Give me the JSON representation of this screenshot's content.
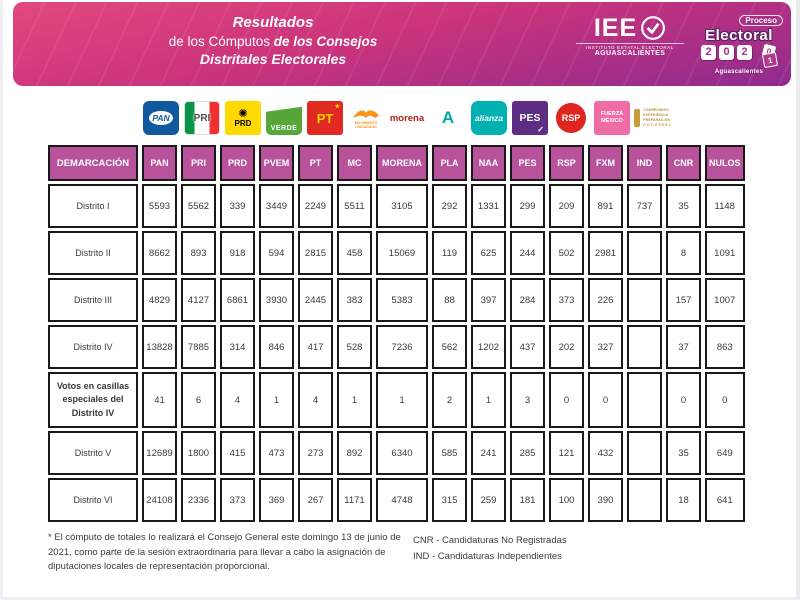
{
  "banner": {
    "title": {
      "line1": "Resultados",
      "line2a": "de los Cómputos ",
      "line2b": "de los Consejos",
      "line3": "Distritales Electorales"
    },
    "iee": {
      "acronym": "IEE",
      "subtitle": "INSTITUTO ESTATAL ELECTORAL",
      "state": "AGUASCALIENTES"
    },
    "proceso": {
      "word1": "Proceso",
      "word2": "Electoral",
      "digits": [
        "2",
        "0",
        "2"
      ],
      "cube_top": "0",
      "cube_front": "1",
      "state": "Aguascalientes"
    }
  },
  "parties": {
    "pan": {
      "label": "PAN",
      "color": "#10599e"
    },
    "pri": {
      "label": "PRI",
      "colors": [
        "#0a9447",
        "#ffffff",
        "#ee312e"
      ]
    },
    "prd": {
      "label": "PRD",
      "sun_icon": "✺",
      "color": "#ffd900"
    },
    "pvem": {
      "label": "VERDE",
      "color": "#57a639"
    },
    "pt": {
      "label": "PT",
      "star_icon": "★",
      "color": "#e02a22"
    },
    "mc": {
      "label": "MOVIMIENTO CIUDADANO",
      "color": "#f7941d"
    },
    "morena": {
      "label": "morena",
      "color": "#a6231c"
    },
    "pla": {
      "label": "A",
      "color": "#00a5a8"
    },
    "naa": {
      "label": "alianza",
      "color": "#00b1b4"
    },
    "pes": {
      "label": "PES",
      "check_icon": "✓",
      "color": "#5c2d83"
    },
    "rsp": {
      "label": "RSP",
      "color": "#e0251f"
    },
    "fxm": {
      "label": "FUERZA MÉXICO",
      "color": "#f06ca5"
    },
    "ind_candidate": {
      "lines": [
        "COMPROMISO",
        "EXPERIENCIA",
        "PREPARACIÓN"
      ],
      "name": "GUTIÉRREZ",
      "color": "#c79a3b"
    }
  },
  "chart_data": {
    "type": "table",
    "title": "Resultados de los Cómputos de los Consejos Distritales Electorales",
    "columns": [
      "DEMARCACIÓN",
      "PAN",
      "PRI",
      "PRD",
      "PVEM",
      "PT",
      "MC",
      "MORENA",
      "PLA",
      "NAA",
      "PES",
      "RSP",
      "FXM",
      "IND",
      "CNR",
      "NULOS"
    ],
    "rows": [
      {
        "label": "Distrito I",
        "values": [
          "5593",
          "5562",
          "339",
          "3449",
          "2249",
          "5511",
          "3105",
          "292",
          "1331",
          "299",
          "209",
          "891",
          "737",
          "35",
          "1148"
        ]
      },
      {
        "label": "Distrito II",
        "values": [
          "8662",
          "893",
          "918",
          "594",
          "2815",
          "458",
          "15069",
          "119",
          "625",
          "244",
          "502",
          "2981",
          "",
          "8",
          "1091"
        ]
      },
      {
        "label": "Distrito III",
        "values": [
          "4829",
          "4127",
          "6861",
          "3930",
          "2445",
          "383",
          "5383",
          "88",
          "397",
          "284",
          "373",
          "226",
          "",
          "157",
          "1007"
        ]
      },
      {
        "label": "Distrito IV",
        "values": [
          "13828",
          "7885",
          "314",
          "846",
          "417",
          "528",
          "7236",
          "562",
          "1202",
          "437",
          "202",
          "327",
          "",
          "37",
          "863"
        ]
      },
      {
        "label": "Votos en casillas especiales del Distrito IV",
        "bold": true,
        "tall": true,
        "values": [
          "41",
          "6",
          "4",
          "1",
          "4",
          "1",
          "1",
          "2",
          "1",
          "3",
          "0",
          "0",
          "",
          "0",
          "0"
        ]
      },
      {
        "label": "Distrito V",
        "values": [
          "12689",
          "1800",
          "415",
          "473",
          "273",
          "892",
          "6340",
          "585",
          "241",
          "285",
          "121",
          "432",
          "",
          "35",
          "649"
        ]
      },
      {
        "label": "Distrito VI",
        "values": [
          "24108",
          "2336",
          "373",
          "369",
          "267",
          "1171",
          "4748",
          "315",
          "259",
          "181",
          "100",
          "390",
          "",
          "18",
          "641"
        ]
      }
    ]
  },
  "footnotes": {
    "left": "* El cómputo de totales lo realizará el Consejo General este domingo 13 de junio de 2021, como parte de la sesión extraordinaria para llevar a cabo la asignación de diputaciones locales de representación proporcional.",
    "right": [
      "CNR - Candidaturas No Registradas",
      "IND - Candidaturas Independientes"
    ]
  },
  "colors": {
    "header_bg": "#b8539b",
    "banner_gradient_start": "#e1497e",
    "banner_gradient_end": "#8e2b8e",
    "table_border": "#191919"
  }
}
